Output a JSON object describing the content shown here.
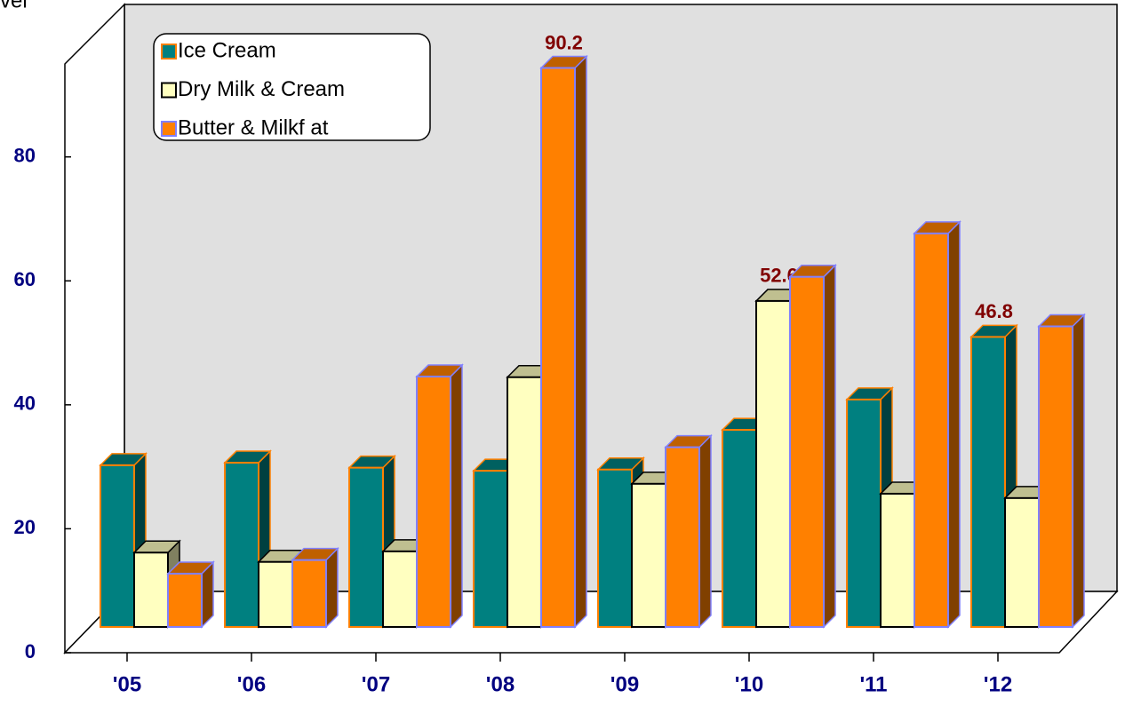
{
  "chart_data": {
    "type": "bar3d",
    "title": "vel",
    "categories": [
      "'05",
      "'06",
      "'07",
      "'08",
      "'09",
      "'10",
      "'11",
      "'12"
    ],
    "series": [
      {
        "name": "Ice Cream",
        "color": "#008080",
        "values": [
          26.1,
          26.5,
          25.7,
          25.2,
          25.4,
          31.8,
          36.7,
          46.8
        ],
        "value_labels": [
          null,
          null,
          null,
          null,
          null,
          null,
          null,
          "46.8"
        ]
      },
      {
        "name": "Dry Milk & Cream",
        "color": "#ffffc0",
        "values": [
          12.0,
          10.5,
          12.2,
          40.3,
          23.1,
          52.6,
          21.5,
          20.8
        ],
        "value_labels": [
          null,
          null,
          null,
          null,
          null,
          "52.6",
          null,
          null
        ]
      },
      {
        "name": "Butter & Milkf at",
        "color": "#ff8000",
        "values": [
          8.6,
          10.8,
          40.4,
          90.2,
          29.0,
          56.5,
          63.5,
          48.5
        ],
        "value_labels": [
          null,
          null,
          null,
          "90.2",
          null,
          null,
          null,
          null
        ]
      }
    ],
    "ylim": [
      0,
      95
    ],
    "yticks": [
      0,
      20,
      40,
      60,
      80
    ],
    "legend": "upper left"
  }
}
